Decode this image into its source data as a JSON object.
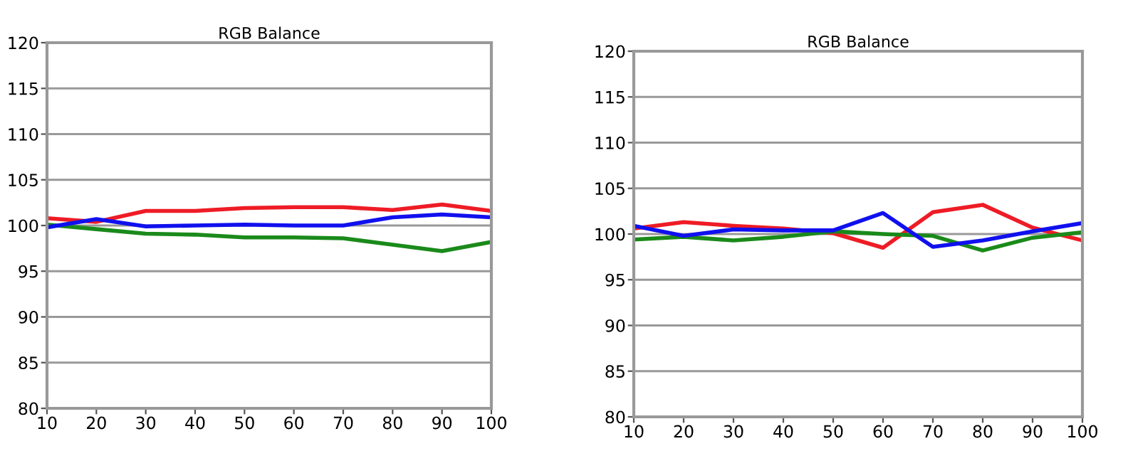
{
  "chart_data": [
    {
      "type": "line",
      "title": "RGB Balance",
      "x": [
        10,
        20,
        30,
        40,
        50,
        60,
        70,
        80,
        90,
        100
      ],
      "xlim": [
        10,
        100
      ],
      "xticks": [
        10,
        20,
        30,
        40,
        50,
        60,
        70,
        80,
        90,
        100
      ],
      "ylim": [
        80,
        120
      ],
      "yticks": [
        80,
        85,
        90,
        95,
        100,
        105,
        110,
        115,
        120
      ],
      "grid": "y",
      "series": [
        {
          "color": "#ee1c25",
          "values": [
            100.8,
            100.4,
            101.6,
            101.6,
            101.9,
            102.0,
            102.0,
            101.7,
            102.3,
            101.6
          ]
        },
        {
          "color": "#1a8a1a",
          "values": [
            100.1,
            99.6,
            99.1,
            99.0,
            98.7,
            98.7,
            98.6,
            97.9,
            97.2,
            98.2
          ]
        },
        {
          "color": "#1010ee",
          "values": [
            99.8,
            100.7,
            99.9,
            100.0,
            100.1,
            100.0,
            100.0,
            100.9,
            101.2,
            100.9
          ]
        }
      ]
    },
    {
      "type": "line",
      "title": "RGB Balance",
      "x": [
        10,
        20,
        30,
        40,
        50,
        60,
        70,
        80,
        90,
        100
      ],
      "xlim": [
        10,
        100
      ],
      "xticks": [
        10,
        20,
        30,
        40,
        50,
        60,
        70,
        80,
        90,
        100
      ],
      "ylim": [
        80,
        120
      ],
      "yticks": [
        80,
        85,
        90,
        95,
        100,
        105,
        110,
        115,
        120
      ],
      "grid": "y",
      "series": [
        {
          "color": "#ee1c25",
          "values": [
            100.6,
            101.3,
            100.9,
            100.6,
            100.1,
            98.5,
            102.4,
            103.2,
            100.7,
            99.3
          ]
        },
        {
          "color": "#1a8a1a",
          "values": [
            99.4,
            99.7,
            99.3,
            99.7,
            100.3,
            100.0,
            99.8,
            98.2,
            99.6,
            100.2
          ]
        },
        {
          "color": "#1010ee",
          "values": [
            100.9,
            99.8,
            100.5,
            100.4,
            100.4,
            102.3,
            98.6,
            99.3,
            100.3,
            101.2
          ]
        }
      ]
    }
  ]
}
